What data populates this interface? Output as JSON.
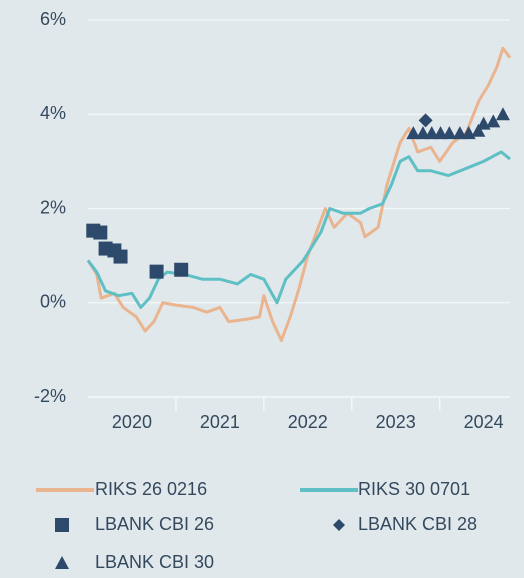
{
  "chart_data": {
    "type": "line",
    "xlim": [
      2020.0,
      2024.8
    ],
    "xticks": [
      {
        "value": 2020.5,
        "label": "2020"
      },
      {
        "value": 2021.5,
        "label": "2021"
      },
      {
        "value": 2022.5,
        "label": "2022"
      },
      {
        "value": 2023.5,
        "label": "2023"
      },
      {
        "value": 2024.5,
        "label": "2024"
      }
    ],
    "ylim": [
      -2,
      6
    ],
    "yticks": [
      {
        "value": -2,
        "label": "-2%"
      },
      {
        "value": 0,
        "label": "0%"
      },
      {
        "value": 2,
        "label": "2%"
      },
      {
        "value": 4,
        "label": "4%"
      },
      {
        "value": 6,
        "label": "6%"
      }
    ],
    "grid": true,
    "legend": "bottom",
    "series": [
      {
        "name": "RIKS 26 0216",
        "type": "line",
        "color": "#e9b48e",
        "x": [
          2020.0,
          2020.1,
          2020.15,
          2020.3,
          2020.4,
          2020.55,
          2020.65,
          2020.75,
          2020.85,
          2021.0,
          2021.2,
          2021.35,
          2021.5,
          2021.6,
          2021.8,
          2021.95,
          2022.0,
          2022.1,
          2022.2,
          2022.3,
          2022.4,
          2022.5,
          2022.6,
          2022.7,
          2022.8,
          2022.95,
          2023.1,
          2023.15,
          2023.3,
          2023.4,
          2023.55,
          2023.65,
          2023.75,
          2023.9,
          2024.0,
          2024.15,
          2024.3,
          2024.45,
          2024.55,
          2024.65,
          2024.72,
          2024.8
        ],
        "values": [
          0.9,
          0.6,
          0.1,
          0.2,
          -0.1,
          -0.3,
          -0.6,
          -0.4,
          0.0,
          -0.05,
          -0.1,
          -0.2,
          -0.1,
          -0.4,
          -0.35,
          -0.3,
          0.15,
          -0.4,
          -0.8,
          -0.3,
          0.3,
          1.0,
          1.5,
          2.0,
          1.6,
          1.9,
          1.7,
          1.4,
          1.6,
          2.5,
          3.4,
          3.7,
          3.2,
          3.3,
          3.0,
          3.4,
          3.6,
          4.3,
          4.6,
          5.0,
          5.4,
          5.2
        ]
      },
      {
        "name": "RIKS 30 0701",
        "type": "line",
        "color": "#5ebfc4",
        "x": [
          2020.0,
          2020.1,
          2020.2,
          2020.35,
          2020.5,
          2020.6,
          2020.7,
          2020.8,
          2020.9,
          2021.1,
          2021.3,
          2021.5,
          2021.7,
          2021.85,
          2022.0,
          2022.15,
          2022.25,
          2022.45,
          2022.55,
          2022.65,
          2022.75,
          2022.9,
          2023.1,
          2023.2,
          2023.35,
          2023.45,
          2023.55,
          2023.65,
          2023.75,
          2023.9,
          2024.1,
          2024.3,
          2024.5,
          2024.6,
          2024.7,
          2024.8
        ],
        "values": [
          0.9,
          0.65,
          0.25,
          0.15,
          0.2,
          -0.1,
          0.1,
          0.5,
          0.65,
          0.6,
          0.5,
          0.5,
          0.4,
          0.6,
          0.5,
          0.0,
          0.5,
          0.9,
          1.2,
          1.5,
          2.0,
          1.9,
          1.9,
          2.0,
          2.1,
          2.5,
          3.0,
          3.1,
          2.8,
          2.8,
          2.7,
          2.85,
          3.0,
          3.1,
          3.2,
          3.05
        ]
      },
      {
        "name": "LBANK CBI 26",
        "type": "scatter",
        "marker": "square",
        "color": "#2d4a6c",
        "x": [
          2020.06,
          2020.14,
          2020.2,
          2020.3,
          2020.37,
          2020.78,
          2021.06
        ],
        "values": [
          1.53,
          1.49,
          1.15,
          1.11,
          0.98,
          0.66,
          0.7
        ]
      },
      {
        "name": "LBANK CBI 28",
        "type": "scatter",
        "marker": "diamond",
        "color": "#2d4a6c",
        "x": [
          2023.84
        ],
        "values": [
          3.87
        ]
      },
      {
        "name": "LBANK CBI 30",
        "type": "scatter",
        "marker": "triangle",
        "color": "#2d4a6c",
        "x": [
          2023.7,
          2023.81,
          2023.91,
          2024.01,
          2024.11,
          2024.23,
          2024.33,
          2024.44,
          2024.5,
          2024.61,
          2024.72
        ],
        "values": [
          3.6,
          3.6,
          3.6,
          3.6,
          3.6,
          3.6,
          3.6,
          3.65,
          3.8,
          3.85,
          4.0
        ]
      }
    ]
  }
}
